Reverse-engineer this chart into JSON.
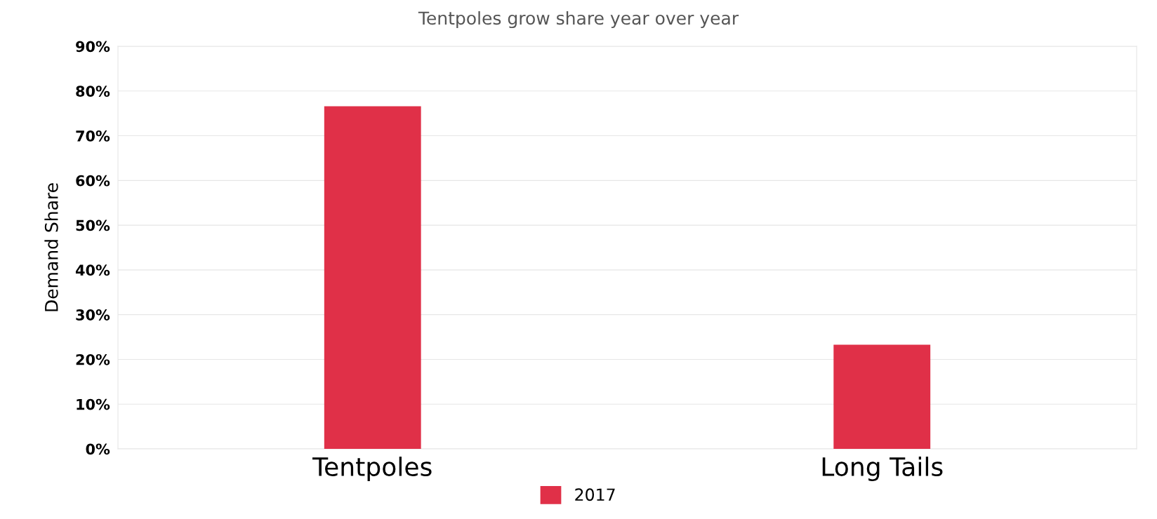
{
  "chart_data": {
    "type": "bar",
    "title": "Tentpoles grow share year over year",
    "ylabel": "Demand Share",
    "categories": [
      "Tentpoles",
      "Long Tails"
    ],
    "series": [
      {
        "name": "2017",
        "color": "#e03048",
        "values": [
          76.6,
          23.3
        ]
      }
    ],
    "ylim": [
      0,
      90
    ],
    "yticks": [
      {
        "value": 0,
        "label": "0%"
      },
      {
        "value": 10,
        "label": "10%"
      },
      {
        "value": 20,
        "label": "20%"
      },
      {
        "value": 30,
        "label": "30%"
      },
      {
        "value": 40,
        "label": "40%"
      },
      {
        "value": 50,
        "label": "50%"
      },
      {
        "value": 60,
        "label": "60%"
      },
      {
        "value": 70,
        "label": "70%"
      },
      {
        "value": 80,
        "label": "80%"
      },
      {
        "value": 90,
        "label": "90%"
      }
    ],
    "grid": "y",
    "legend": "bottom"
  }
}
